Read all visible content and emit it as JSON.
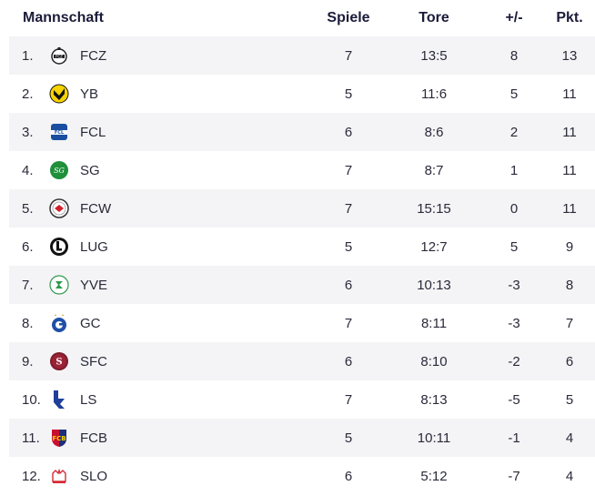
{
  "headers": {
    "team": "Mannschaft",
    "games": "Spiele",
    "goals": "Tore",
    "diff": "+/-",
    "points": "Pkt."
  },
  "rows": [
    {
      "rank": "1.",
      "team": "FCZ",
      "games": "7",
      "goals": "13:5",
      "diff": "8",
      "points": "13",
      "logo": "fcz-logo-icon"
    },
    {
      "rank": "2.",
      "team": "YB",
      "games": "5",
      "goals": "11:6",
      "diff": "5",
      "points": "11",
      "logo": "yb-logo-icon"
    },
    {
      "rank": "3.",
      "team": "FCL",
      "games": "6",
      "goals": "8:6",
      "diff": "2",
      "points": "11",
      "logo": "fcl-logo-icon"
    },
    {
      "rank": "4.",
      "team": "SG",
      "games": "7",
      "goals": "8:7",
      "diff": "1",
      "points": "11",
      "logo": "sg-logo-icon"
    },
    {
      "rank": "5.",
      "team": "FCW",
      "games": "7",
      "goals": "15:15",
      "diff": "0",
      "points": "11",
      "logo": "fcw-logo-icon"
    },
    {
      "rank": "6.",
      "team": "LUG",
      "games": "5",
      "goals": "12:7",
      "diff": "5",
      "points": "9",
      "logo": "lug-logo-icon"
    },
    {
      "rank": "7.",
      "team": "YVE",
      "games": "6",
      "goals": "10:13",
      "diff": "-3",
      "points": "8",
      "logo": "yve-logo-icon"
    },
    {
      "rank": "8.",
      "team": "GC",
      "games": "7",
      "goals": "8:11",
      "diff": "-3",
      "points": "7",
      "logo": "gc-logo-icon"
    },
    {
      "rank": "9.",
      "team": "SFC",
      "games": "6",
      "goals": "8:10",
      "diff": "-2",
      "points": "6",
      "logo": "sfc-logo-icon"
    },
    {
      "rank": "10.",
      "team": "LS",
      "games": "7",
      "goals": "8:13",
      "diff": "-5",
      "points": "5",
      "logo": "ls-logo-icon"
    },
    {
      "rank": "11.",
      "team": "FCB",
      "games": "5",
      "goals": "10:11",
      "diff": "-1",
      "points": "4",
      "logo": "fcb-logo-icon"
    },
    {
      "rank": "12.",
      "team": "SLO",
      "games": "6",
      "goals": "5:12",
      "diff": "-7",
      "points": "4",
      "logo": "slo-logo-icon"
    }
  ],
  "colors": {
    "row_shade": "#f4f4f6",
    "text": "#2a2a3a",
    "header_text": "#1b1b3a"
  }
}
